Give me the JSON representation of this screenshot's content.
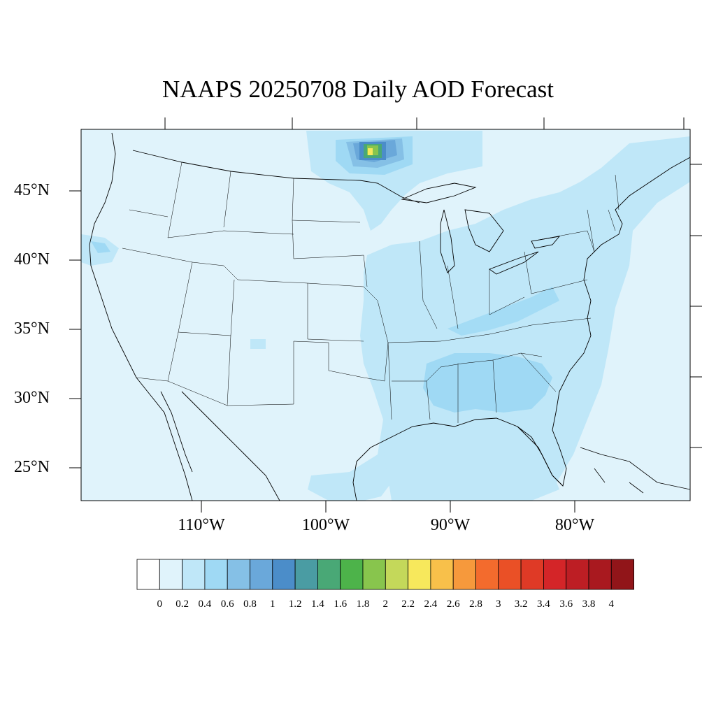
{
  "title": "NAAPS 20250708 Daily AOD Forecast",
  "map": {
    "latitude_labels": [
      "45°N",
      "40°N",
      "35°N",
      "30°N",
      "25°N"
    ],
    "longitude_labels": [
      "110°W",
      "100°W",
      "90°W",
      "80°W"
    ],
    "background_aod_color": "#e0f3fb"
  },
  "colorbar": {
    "labels": [
      "0",
      "0.2",
      "0.4",
      "0.6",
      "0.8",
      "1",
      "1.2",
      "1.4",
      "1.6",
      "1.8",
      "2",
      "2.2",
      "2.4",
      "2.6",
      "2.8",
      "3",
      "3.2",
      "3.4",
      "3.6",
      "3.8",
      "4"
    ],
    "colors": [
      "#ffffff",
      "#e0f3fb",
      "#bfe7f8",
      "#9fd9f4",
      "#85c0e6",
      "#6aa8da",
      "#4b8dc9",
      "#4a9ca3",
      "#49a876",
      "#4db34a",
      "#88c54d",
      "#c4d85a",
      "#f7e85c",
      "#f8c04a",
      "#f6993c",
      "#f36b2d",
      "#ea5026",
      "#df3a26",
      "#d42528",
      "#bd1e24",
      "#a9191f",
      "#911519"
    ]
  }
}
